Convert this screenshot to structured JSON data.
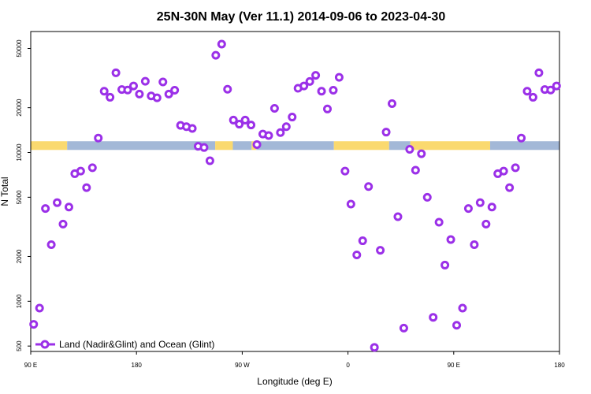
{
  "chart_data": {
    "type": "scatter",
    "title": "25N-30N May (Ver 11.1)   2014-09-06 to 2023-04-30",
    "xlabel": "Longitude (deg E)",
    "ylabel": "N Total",
    "x_ticks": [
      {
        "value": 90,
        "label": "90 E"
      },
      {
        "value": 180,
        "label": "180"
      },
      {
        "value": 270,
        "label": "90 W"
      },
      {
        "value": 360,
        "label": "0"
      },
      {
        "value": 450,
        "label": "90 E"
      },
      {
        "value": 540,
        "label": "180"
      }
    ],
    "y_ticks": [
      {
        "value": 500,
        "label": "500"
      },
      {
        "value": 1000,
        "label": "1000"
      },
      {
        "value": 2000,
        "label": "2000"
      },
      {
        "value": 5000,
        "label": "5000"
      },
      {
        "value": 10000,
        "label": "10000"
      },
      {
        "value": 20000,
        "label": "20000"
      },
      {
        "value": 50000,
        "label": "50000"
      }
    ],
    "xlim": [
      90,
      540
    ],
    "ylim": [
      460,
      65000
    ],
    "yscale": "log",
    "legend": {
      "label": "Land (Nadir&Glint) and Ocean (Glint)",
      "position": "bottom-left"
    },
    "land_ocean_band": {
      "y_range": [
        10400,
        11900
      ],
      "land_color": "#fad96f",
      "ocean_color": "#a3b8d7",
      "segments": [
        {
          "type": "land",
          "x0": 90,
          "x1": 121
        },
        {
          "type": "ocean",
          "x0": 121,
          "x1": 247
        },
        {
          "type": "land",
          "x0": 247,
          "x1": 262
        },
        {
          "type": "ocean",
          "x0": 262,
          "x1": 278
        },
        {
          "type": "land",
          "x0": 278,
          "x1": 282
        },
        {
          "type": "ocean",
          "x0": 282,
          "x1": 348
        },
        {
          "type": "land",
          "x0": 348,
          "x1": 395
        },
        {
          "type": "ocean",
          "x0": 395,
          "x1": 413
        },
        {
          "type": "land",
          "x0": 413,
          "x1": 481
        },
        {
          "type": "ocean",
          "x0": 481,
          "x1": 540
        }
      ]
    },
    "series": [
      {
        "name": "Land (Nadir&Glint) and Ocean (Glint)",
        "color": "#9b30e8",
        "x": [
          92.5,
          97.5,
          102.5,
          107.5,
          112.5,
          117.5,
          122.5,
          127.5,
          132.5,
          137.5,
          142.5,
          147.5,
          152.5,
          157.5,
          162.5,
          167.5,
          172.5,
          177.5,
          182.5,
          187.5,
          192.5,
          197.5,
          202.5,
          207.5,
          212.5,
          217.5,
          222.5,
          227.5,
          232.5,
          237.5,
          242.5,
          247.5,
          252.5,
          257.5,
          262.5,
          267.5,
          272.5,
          277.5,
          282.5,
          287.5,
          292.5,
          297.5,
          302.5,
          307.5,
          312.5,
          317.5,
          322.5,
          327.5,
          332.5,
          337.5,
          342.5,
          347.5,
          352.5,
          357.5,
          362.5,
          367.5,
          372.5,
          377.5,
          382.5,
          387.5,
          392.5,
          397.5,
          402.5,
          407.5,
          412.5,
          417.5,
          422.5,
          427.5,
          432.5,
          437.5,
          442.5,
          447.5,
          452.5,
          457.5,
          462.5,
          467.5,
          472.5,
          477.5,
          482.5,
          487.5,
          492.5,
          497.5,
          502.5,
          507.5,
          512.5,
          517.5,
          522.5,
          527.5,
          532.5,
          537.5
        ],
        "values": [
          700,
          900,
          4200,
          2400,
          4600,
          3300,
          4300,
          7200,
          7500,
          5800,
          7900,
          12500,
          25800,
          23500,
          34300,
          26500,
          26300,
          28000,
          24700,
          30100,
          24000,
          23300,
          29800,
          24700,
          26200,
          15200,
          14900,
          14500,
          11000,
          10800,
          8800,
          45000,
          53500,
          26600,
          16500,
          15500,
          16500,
          15300,
          11300,
          13300,
          13000,
          19800,
          13600,
          14900,
          17300,
          27000,
          28000,
          30000,
          33000,
          25800,
          19600,
          26200,
          32000,
          7500,
          4500,
          2050,
          2550,
          5900,
          490,
          2200,
          13700,
          21300,
          3700,
          660,
          10500,
          7600,
          9800,
          5000,
          780,
          3400,
          1750,
          2600,
          690,
          900,
          4200,
          2400,
          4600,
          3300,
          4300,
          7200,
          7500,
          5800,
          7900,
          12500,
          25800,
          23500,
          34300,
          26500,
          26300,
          28000
        ]
      }
    ]
  }
}
